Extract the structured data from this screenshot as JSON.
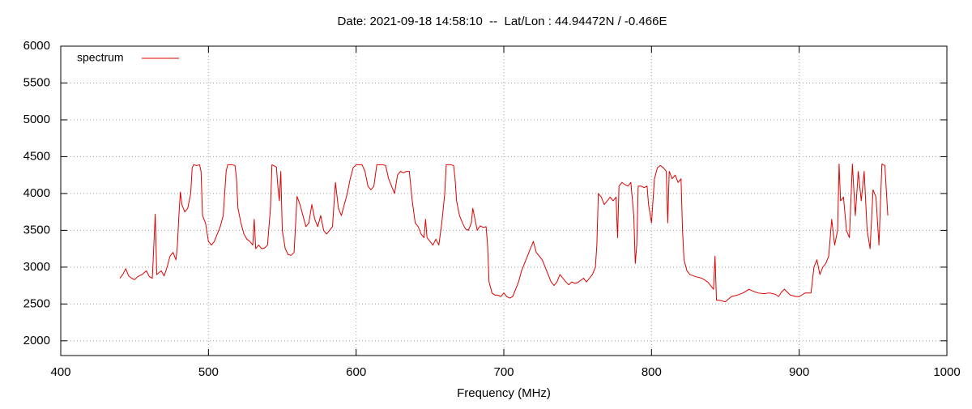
{
  "chart_data": {
    "type": "line",
    "title": "Date: 2021-09-18 14:58:10  --  Lat/Lon : 44.94472N / -0.466E",
    "x_label": "Frequency (MHz)",
    "xlim": [
      400,
      1000
    ],
    "xticks": [
      400,
      500,
      600,
      700,
      800,
      900,
      1000
    ],
    "ylim": [
      1800,
      6000
    ],
    "yticks": [
      2000,
      2500,
      3000,
      3500,
      4000,
      4500,
      5000,
      5500,
      6000
    ],
    "grid": true,
    "legend": "top-left",
    "x": [
      440,
      442,
      444,
      446,
      448,
      450,
      452,
      455,
      458,
      460,
      462,
      464,
      465,
      468,
      470,
      472,
      474,
      476,
      478,
      479,
      480,
      481,
      482,
      484,
      486,
      488,
      489,
      490,
      492,
      494,
      495,
      496,
      498,
      500,
      502,
      504,
      506,
      508,
      510,
      512,
      513,
      516,
      518,
      519,
      520,
      522,
      524,
      526,
      528,
      530,
      531,
      532,
      534,
      536,
      538,
      540,
      542,
      543,
      546,
      547,
      548,
      549,
      550,
      552,
      554,
      556,
      558,
      560,
      562,
      564,
      566,
      568,
      570,
      572,
      574,
      576,
      578,
      580,
      582,
      584,
      586,
      588,
      590,
      592,
      594,
      596,
      598,
      600,
      604,
      606,
      608,
      610,
      612,
      614,
      618,
      620,
      622,
      624,
      626,
      628,
      630,
      632,
      634,
      636,
      638,
      640,
      642,
      644,
      646,
      647,
      648,
      650,
      652,
      654,
      656,
      658,
      660,
      661,
      664,
      666,
      667,
      668,
      670,
      672,
      674,
      676,
      678,
      679,
      680,
      682,
      684,
      686,
      688,
      689,
      690,
      692,
      694,
      696,
      698,
      700,
      702,
      704,
      706,
      708,
      710,
      712,
      714,
      716,
      718,
      720,
      722,
      724,
      726,
      728,
      730,
      732,
      734,
      736,
      738,
      740,
      742,
      744,
      746,
      748,
      750,
      752,
      754,
      756,
      758,
      760,
      762,
      763,
      764,
      766,
      768,
      770,
      772,
      774,
      776,
      777,
      778,
      780,
      782,
      784,
      786,
      788,
      789,
      790,
      791,
      793,
      795,
      797,
      798,
      800,
      802,
      804,
      806,
      808,
      810,
      811,
      812,
      814,
      816,
      818,
      820,
      821,
      822,
      824,
      826,
      830,
      834,
      838,
      840,
      842,
      843,
      844,
      846,
      850,
      854,
      858,
      862,
      866,
      868,
      872,
      876,
      880,
      884,
      886,
      888,
      890,
      894,
      898,
      900,
      904,
      908,
      910,
      912,
      914,
      916,
      918,
      920,
      922,
      924,
      926,
      927,
      928,
      930,
      932,
      934,
      936,
      938,
      940,
      942,
      944,
      946,
      948,
      950,
      952,
      954,
      956,
      958,
      960
    ],
    "series": [
      {
        "name": "spectrum",
        "color": "#e00000",
        "values": [
          2850,
          2900,
          2980,
          2880,
          2850,
          2830,
          2870,
          2900,
          2950,
          2870,
          2850,
          3720,
          2900,
          2950,
          2880,
          3000,
          3150,
          3200,
          3100,
          3300,
          3700,
          4020,
          3850,
          3750,
          3800,
          4000,
          4350,
          4390,
          4380,
          4390,
          4300,
          3700,
          3600,
          3350,
          3300,
          3350,
          3450,
          3550,
          3700,
          4300,
          4390,
          4390,
          4380,
          4200,
          3800,
          3600,
          3450,
          3380,
          3350,
          3300,
          3650,
          3250,
          3300,
          3250,
          3260,
          3300,
          3800,
          4390,
          4360,
          4100,
          3900,
          4300,
          3500,
          3250,
          3170,
          3160,
          3200,
          3960,
          3850,
          3700,
          3550,
          3600,
          3850,
          3650,
          3550,
          3700,
          3500,
          3450,
          3500,
          3550,
          4150,
          3800,
          3700,
          3850,
          4000,
          4200,
          4350,
          4390,
          4390,
          4300,
          4100,
          4050,
          4100,
          4390,
          4390,
          4380,
          4200,
          4100,
          4000,
          4250,
          4300,
          4280,
          4300,
          4300,
          3900,
          3600,
          3550,
          3450,
          3400,
          3650,
          3400,
          3350,
          3300,
          3380,
          3300,
          3600,
          4000,
          4390,
          4390,
          4380,
          4200,
          3900,
          3700,
          3600,
          3520,
          3500,
          3600,
          3800,
          3700,
          3500,
          3560,
          3540,
          3550,
          3300,
          2800,
          2650,
          2620,
          2620,
          2600,
          2650,
          2600,
          2580,
          2600,
          2700,
          2800,
          2950,
          3050,
          3150,
          3250,
          3350,
          3200,
          3150,
          3100,
          3000,
          2900,
          2800,
          2750,
          2800,
          2900,
          2850,
          2800,
          2760,
          2800,
          2780,
          2790,
          2820,
          2850,
          2800,
          2850,
          2900,
          3000,
          3300,
          4000,
          3950,
          3850,
          3900,
          3950,
          3900,
          3950,
          3400,
          4100,
          4150,
          4120,
          4100,
          4150,
          3700,
          3050,
          3300,
          4100,
          4100,
          4080,
          4100,
          3850,
          3600,
          4200,
          4350,
          4380,
          4350,
          4300,
          3600,
          4300,
          4200,
          4250,
          4150,
          4200,
          3500,
          3100,
          2950,
          2900,
          2870,
          2850,
          2800,
          2750,
          2700,
          3150,
          2550,
          2550,
          2530,
          2600,
          2620,
          2650,
          2700,
          2680,
          2650,
          2640,
          2650,
          2630,
          2600,
          2660,
          2700,
          2620,
          2600,
          2600,
          2650,
          2650,
          3000,
          3100,
          2900,
          3000,
          3050,
          3150,
          3650,
          3300,
          3500,
          4400,
          3900,
          3950,
          3500,
          3400,
          4400,
          3700,
          4300,
          3900,
          4300,
          3500,
          3250,
          4050,
          3950,
          3300,
          4400,
          4380,
          3700
        ]
      }
    ]
  }
}
